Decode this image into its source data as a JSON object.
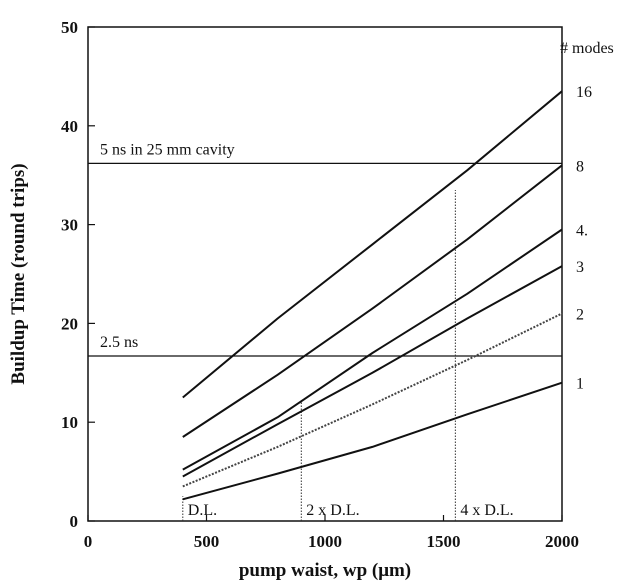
{
  "chart_data": {
    "type": "line",
    "title": "",
    "xlabel": "pump waist, wp  (μm)",
    "ylabel": "Buildup Time (round trips)",
    "xlim": [
      0,
      2000
    ],
    "ylim": [
      0,
      50
    ],
    "x_ticks": [
      "0",
      "500",
      "1000",
      "1500",
      "2000"
    ],
    "y_ticks": [
      "0",
      "10",
      "20",
      "30",
      "40",
      "50"
    ],
    "legend_title": "# modes",
    "grid": false,
    "series": [
      {
        "name": "16",
        "x": [
          400,
          800,
          1200,
          1600,
          2000
        ],
        "y": [
          12.5,
          20.5,
          28.0,
          35.5,
          43.5
        ],
        "style": "solid"
      },
      {
        "name": "8",
        "x": [
          400,
          800,
          1200,
          1600,
          2000
        ],
        "y": [
          8.5,
          14.8,
          21.5,
          28.5,
          36.0
        ],
        "style": "solid"
      },
      {
        "name": "4.",
        "x": [
          400,
          800,
          1200,
          1600,
          2000
        ],
        "y": [
          5.2,
          10.5,
          17.0,
          23.0,
          29.5
        ],
        "style": "solid"
      },
      {
        "name": "3",
        "x": [
          400,
          800,
          1200,
          1600,
          2000
        ],
        "y": [
          4.5,
          9.8,
          15.0,
          20.5,
          25.8
        ],
        "style": "solid"
      },
      {
        "name": "2",
        "x": [
          400,
          800,
          1200,
          1600,
          2000
        ],
        "y": [
          3.5,
          7.5,
          11.8,
          16.3,
          21.0
        ],
        "style": "dotted"
      },
      {
        "name": "1",
        "x": [
          400,
          800,
          1200,
          1600,
          2000
        ],
        "y": [
          2.2,
          4.8,
          7.5,
          10.8,
          14.0
        ],
        "style": "solid"
      }
    ],
    "hlines": [
      {
        "y": 36.2,
        "label": "5 ns in 25 mm cavity"
      },
      {
        "y": 16.7,
        "label": "2.5 ns"
      }
    ],
    "vlines": [
      {
        "x": 400,
        "label": "D.L.",
        "ymax": 2.5
      },
      {
        "x": 900,
        "label": "2 x D.L.",
        "ymax": 12.0
      },
      {
        "x": 1550,
        "label": "4 x D.L.",
        "ymax": 33.5
      }
    ]
  }
}
